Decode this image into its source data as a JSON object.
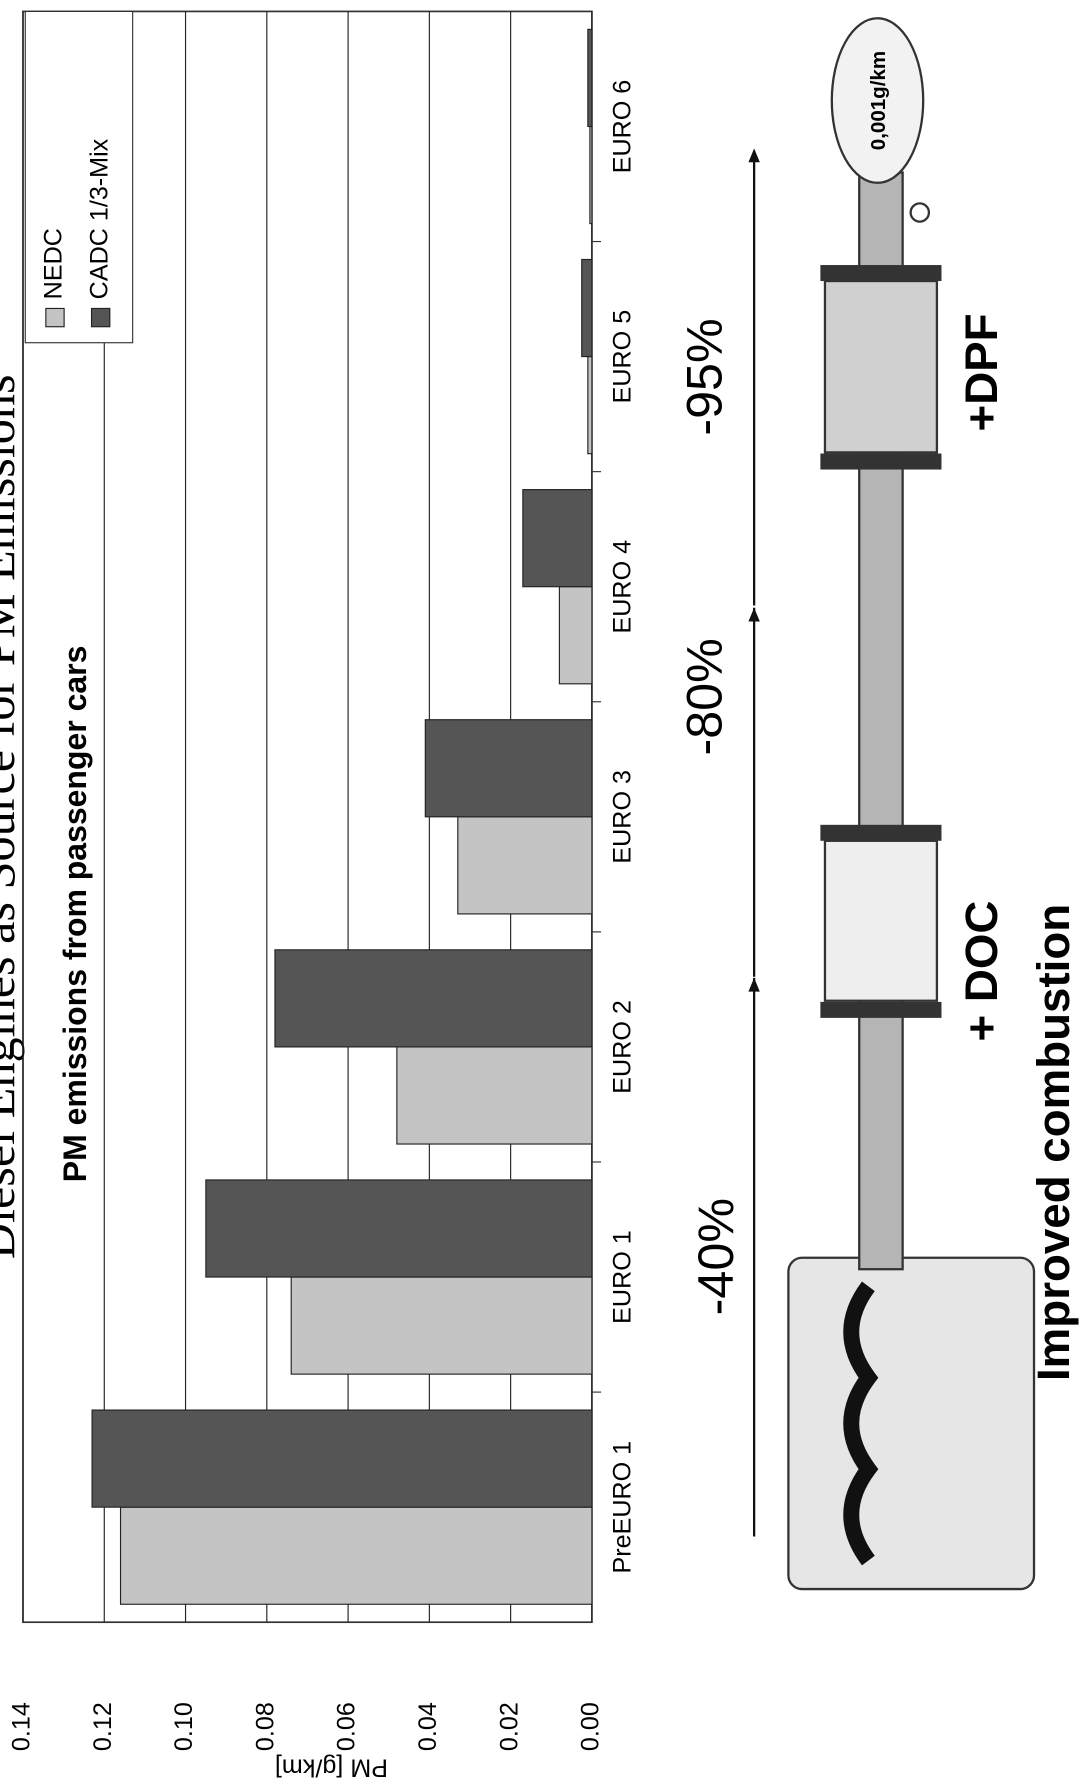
{
  "chart_data": {
    "type": "bar",
    "title": "Diesel Engines as Source for PM Emissions",
    "subtitle": "PM emissions from passenger cars",
    "y_label": "PM [g/km]",
    "categories": [
      "PreEURO 1",
      "EURO 1",
      "EURO 2",
      "EURO 3",
      "EURO 4",
      "EURO 5",
      "EURO 6"
    ],
    "series": [
      {
        "name": "NEDC",
        "color": "#c4c4c4",
        "values": [
          0.116,
          0.074,
          0.048,
          0.033,
          0.008,
          0.001,
          0.0005
        ]
      },
      {
        "name": "CADC 1/3-Mix",
        "color": "#555555",
        "values": [
          0.123,
          0.095,
          0.078,
          0.041,
          0.017,
          0.0025,
          0.001
        ]
      }
    ],
    "ylim": [
      0,
      0.14
    ],
    "yticks": [
      {
        "value": 0,
        "label": "0.00"
      },
      {
        "value": 0.02,
        "label": "0.02"
      },
      {
        "value": 0.04,
        "label": "0.04"
      },
      {
        "value": 0.06,
        "label": "0.06"
      },
      {
        "value": 0.08,
        "label": "0.08"
      },
      {
        "value": 0.1,
        "label": "0.10"
      },
      {
        "value": 0.12,
        "label": "0.12"
      },
      {
        "value": 0.14,
        "label": "0.14"
      }
    ],
    "grid": true,
    "legend": "upper right",
    "annotations": [
      "-40%",
      "-80%",
      "-95%",
      "+ DOC",
      "+DPF",
      "Improved combustion",
      "0,001g/km"
    ]
  }
}
